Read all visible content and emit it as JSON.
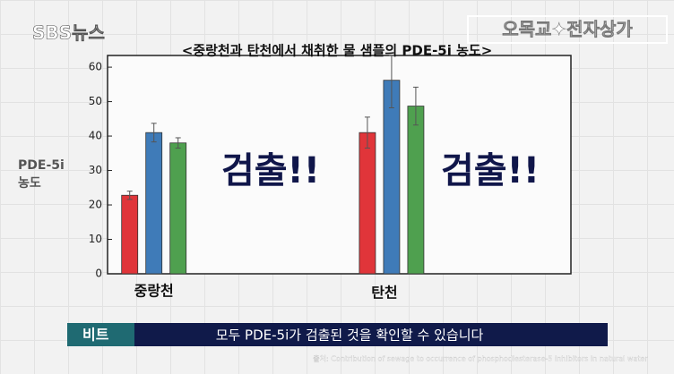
{
  "header": {
    "logo": "SBS뉴스",
    "program": "오목교✦전자상가"
  },
  "chart_data": {
    "type": "bar",
    "title": "<중랑천과 탄천에서 채취한 물 샘플의 PDE-5i 농도>",
    "y_label": "PDE-5i\n농도",
    "categories": [
      "중랑천",
      "탄천"
    ],
    "series": [
      {
        "color": "#e0353a",
        "values": [
          22.8,
          41
        ],
        "errors": [
          1.2,
          4.5
        ]
      },
      {
        "color": "#3f7bb8",
        "values": [
          41,
          56.2
        ],
        "errors": [
          2.7,
          8
        ]
      },
      {
        "color": "#4fa04f",
        "values": [
          38,
          48.7
        ],
        "errors": [
          1.5,
          5.5
        ]
      }
    ],
    "annotations": [
      "검출!!",
      "검출!!"
    ],
    "ylim": [
      0,
      63.4
    ],
    "yticks": [
      0,
      10,
      20,
      30,
      40,
      50,
      60
    ],
    "grid": false
  },
  "caption": {
    "speaker": "비트",
    "text": "모두 PDE-5i가 검출된 것을 확인할 수 있습니다"
  },
  "source": "출처: Contribution of sewage to occurrence of phosphodiesterase-5 inhibitors in natural water"
}
